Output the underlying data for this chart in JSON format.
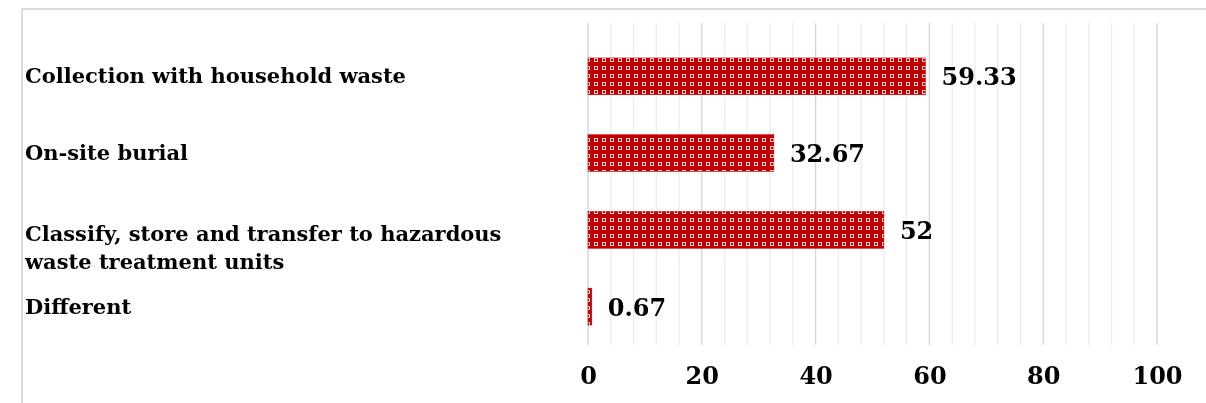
{
  "chart_data": {
    "type": "bar",
    "orientation": "horizontal",
    "categories": [
      "Collection with household waste",
      "On-site burial",
      "Classify, store and transfer to hazardous waste treatment units",
      "Different"
    ],
    "values": [
      59.33,
      32.67,
      52,
      0.67
    ],
    "color": "#c00000",
    "data_labels": true,
    "xlim": [
      0,
      100
    ],
    "xticks": [
      0,
      {
        "value": 4,
        "label": null
      },
      {
        "value": 8,
        "label": null
      },
      {
        "value": 12,
        "label": null
      },
      {
        "value": 16,
        "label": null
      },
      20,
      {
        "value": 24,
        "label": null
      },
      {
        "value": 28,
        "label": null
      },
      {
        "value": 32,
        "label": null
      },
      {
        "value": 36,
        "label": null
      },
      40,
      {
        "value": 44,
        "label": null
      },
      {
        "value": 48,
        "label": null
      },
      {
        "value": 52,
        "label": null
      },
      {
        "value": 56,
        "label": null
      },
      60,
      {
        "value": 64,
        "label": null
      },
      {
        "value": 68,
        "label": null
      },
      {
        "value": 72,
        "label": null
      },
      {
        "value": 76,
        "label": null
      },
      80,
      {
        "value": 84,
        "label": null
      },
      {
        "value": 88,
        "label": null
      },
      {
        "value": 92,
        "label": null
      },
      {
        "value": 96,
        "label": null
      },
      100
    ],
    "grid": "x"
  }
}
